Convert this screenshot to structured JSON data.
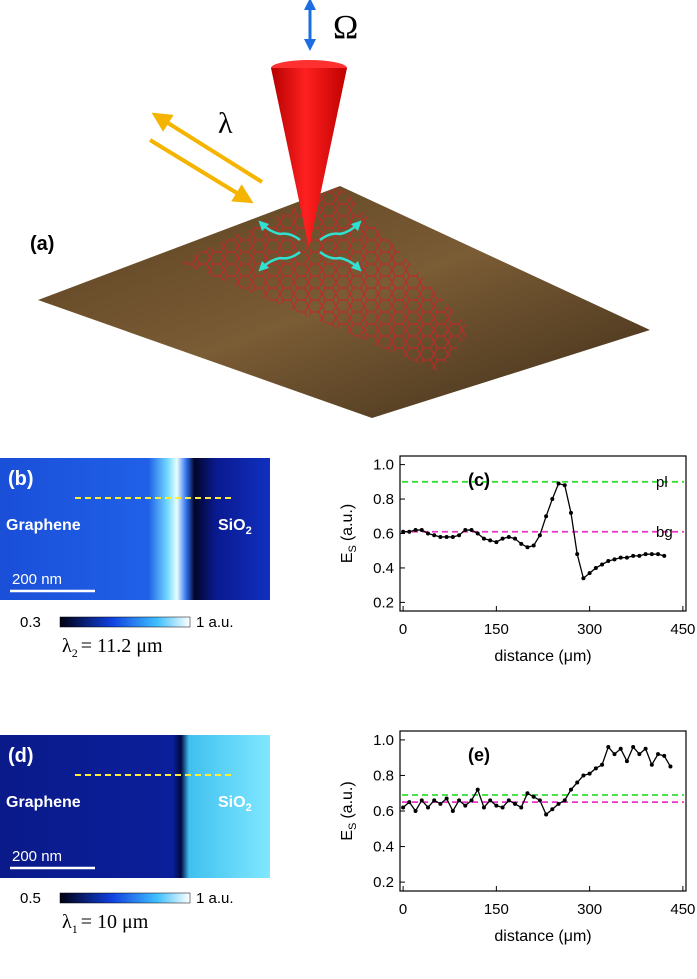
{
  "figure": {
    "panel_a": {
      "label": "(a)",
      "omega": "Ω",
      "lambda": "λ"
    },
    "panel_b": {
      "label": "(b)",
      "left": "Graphene",
      "right": "SiO",
      "right_sub": "2",
      "scale": "200 nm",
      "cbar_min": "0.3",
      "cbar_max": "1 a.u.",
      "wl": "λ",
      "wl_sub": "2",
      "wl_rest": "= 11.2 μm"
    },
    "panel_d": {
      "label": "(d)",
      "left": "Graphene",
      "right": "SiO",
      "right_sub": "2",
      "scale": "200 nm",
      "cbar_min": "0.5",
      "cbar_max": "1 a.u.",
      "wl": "λ",
      "wl_sub": "1",
      "wl_rest": "= 10 μm"
    }
  },
  "chart_data": [
    {
      "type": "line",
      "panel_label": "(c)",
      "y_label": "E",
      "y_label_sub": "S",
      "y_label_unit": "(a.u.)",
      "x_label": "distance (μm)",
      "x": [
        0,
        10,
        20,
        30,
        40,
        50,
        60,
        70,
        80,
        90,
        100,
        110,
        120,
        130,
        140,
        150,
        160,
        170,
        180,
        190,
        200,
        210,
        220,
        230,
        240,
        250,
        260,
        270,
        280,
        290,
        300,
        310,
        320,
        330,
        340,
        350,
        360,
        370,
        380,
        390,
        400,
        410,
        420
      ],
      "series": [
        {
          "color": "#000000",
          "values": [
            0.61,
            0.61,
            0.62,
            0.62,
            0.6,
            0.59,
            0.58,
            0.58,
            0.58,
            0.59,
            0.62,
            0.62,
            0.6,
            0.57,
            0.56,
            0.55,
            0.57,
            0.58,
            0.57,
            0.54,
            0.52,
            0.53,
            0.59,
            0.7,
            0.8,
            0.89,
            0.88,
            0.72,
            0.48,
            0.34,
            0.37,
            0.4,
            0.42,
            0.44,
            0.45,
            0.46,
            0.46,
            0.47,
            0.47,
            0.48,
            0.48,
            0.48,
            0.47
          ]
        }
      ],
      "hlines": [
        {
          "value": 0.9,
          "color": "#33dd33",
          "label": "pl"
        },
        {
          "value": 0.61,
          "color": "#ee33cc",
          "label": "bg"
        }
      ],
      "xlim": [
        -5,
        455
      ],
      "xticks": [
        0,
        150,
        300,
        450
      ],
      "ylim": [
        0.15,
        1.05
      ],
      "yticks": [
        0.2,
        0.4,
        0.6,
        0.8,
        {
          "value": 1,
          "label": "1.0"
        }
      ]
    },
    {
      "type": "line",
      "panel_label": "(e)",
      "y_label": "E",
      "y_label_sub": "S",
      "y_label_unit": "(a.u.)",
      "x_label": "distance (μm)",
      "x": [
        0,
        10,
        20,
        30,
        40,
        50,
        60,
        70,
        80,
        90,
        100,
        110,
        120,
        130,
        140,
        150,
        160,
        170,
        180,
        190,
        200,
        210,
        220,
        230,
        240,
        250,
        260,
        270,
        280,
        290,
        300,
        310,
        320,
        330,
        340,
        350,
        360,
        370,
        380,
        390,
        400,
        410,
        420,
        430
      ],
      "series": [
        {
          "color": "#000000",
          "values": [
            0.62,
            0.65,
            0.6,
            0.66,
            0.62,
            0.66,
            0.64,
            0.67,
            0.6,
            0.66,
            0.63,
            0.66,
            0.72,
            0.62,
            0.66,
            0.63,
            0.62,
            0.66,
            0.64,
            0.62,
            0.7,
            0.68,
            0.66,
            0.58,
            0.61,
            0.64,
            0.66,
            0.72,
            0.76,
            0.8,
            0.81,
            0.84,
            0.86,
            0.96,
            0.92,
            0.95,
            0.88,
            0.96,
            0.92,
            0.95,
            0.86,
            0.92,
            0.91,
            0.85
          ]
        }
      ],
      "hlines": [
        {
          "value": 0.69,
          "color": "#33dd33"
        },
        {
          "value": 0.65,
          "color": "#ee33cc"
        }
      ],
      "xlim": [
        -5,
        455
      ],
      "xticks": [
        0,
        150,
        300,
        450
      ],
      "ylim": [
        0.15,
        1.05
      ],
      "yticks": [
        0.2,
        0.4,
        0.6,
        0.8,
        {
          "value": 1,
          "label": "1.0"
        }
      ]
    }
  ]
}
